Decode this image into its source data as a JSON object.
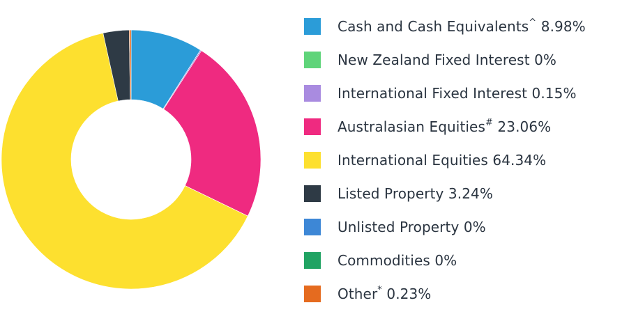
{
  "chart_data": {
    "type": "pie",
    "title": "",
    "legend": "right",
    "series": [
      {
        "name": "Cash and Cash Equivalents",
        "mark": "^",
        "value": 8.98,
        "color": "#2b9cd8"
      },
      {
        "name": "New Zealand Fixed Interest",
        "mark": "",
        "value": 0,
        "color": "#5fd47a"
      },
      {
        "name": "International Fixed Interest",
        "mark": "",
        "value": 0.15,
        "color": "#a98be0"
      },
      {
        "name": "Australasian Equities",
        "mark": "#",
        "value": 23.06,
        "color": "#ef2a80"
      },
      {
        "name": "International Equities",
        "mark": "",
        "value": 64.34,
        "color": "#fde02f"
      },
      {
        "name": "Listed Property",
        "mark": "",
        "value": 3.24,
        "color": "#2e3a45"
      },
      {
        "name": "Unlisted Property",
        "mark": "",
        "value": 0,
        "color": "#3d87d6"
      },
      {
        "name": "Commodities",
        "mark": "",
        "value": 0,
        "color": "#20a363"
      },
      {
        "name": "Other",
        "mark": "*",
        "value": 0.23,
        "color": "#e56b1f"
      }
    ]
  }
}
